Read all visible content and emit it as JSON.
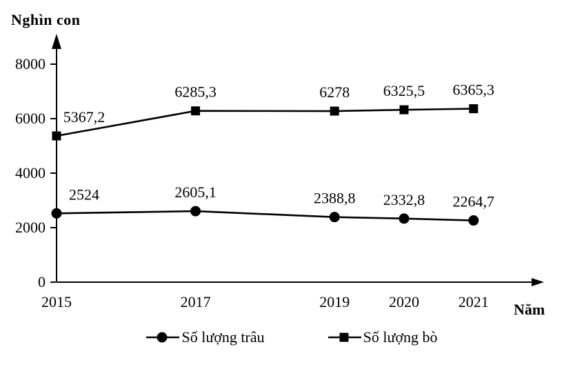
{
  "chart_data": {
    "type": "line",
    "title": "",
    "ylabel": "Nghìn con",
    "xlabel": "Năm",
    "x": [
      2015,
      2017,
      2019,
      2020,
      2021
    ],
    "categories": [
      "2015",
      "2017",
      "2019",
      "2020",
      "2021"
    ],
    "yticks": [
      0,
      2000,
      4000,
      6000,
      8000
    ],
    "ytick_labels": [
      "0",
      "2000",
      "4000",
      "6000",
      "8000"
    ],
    "ylim": [
      0,
      8800
    ],
    "x_scale": "linear",
    "grid": false,
    "legend_position": "bottom",
    "axis_color": "#000000",
    "series": [
      {
        "name": "Số lượng trâu",
        "marker": "circle",
        "color": "#000000",
        "values": [
          2524,
          2605.1,
          2388.8,
          2332.8,
          2264.7
        ],
        "point_labels": [
          "2524",
          "2605,1",
          "2388,8",
          "2332,8",
          "2264,7"
        ]
      },
      {
        "name": "Số lượng bò",
        "marker": "square",
        "color": "#000000",
        "values": [
          5367.2,
          6285.3,
          6278,
          6325.5,
          6365.3
        ],
        "point_labels": [
          "5367,2",
          "6285,3",
          "6278",
          "6325,5",
          "6365,3"
        ]
      }
    ]
  }
}
